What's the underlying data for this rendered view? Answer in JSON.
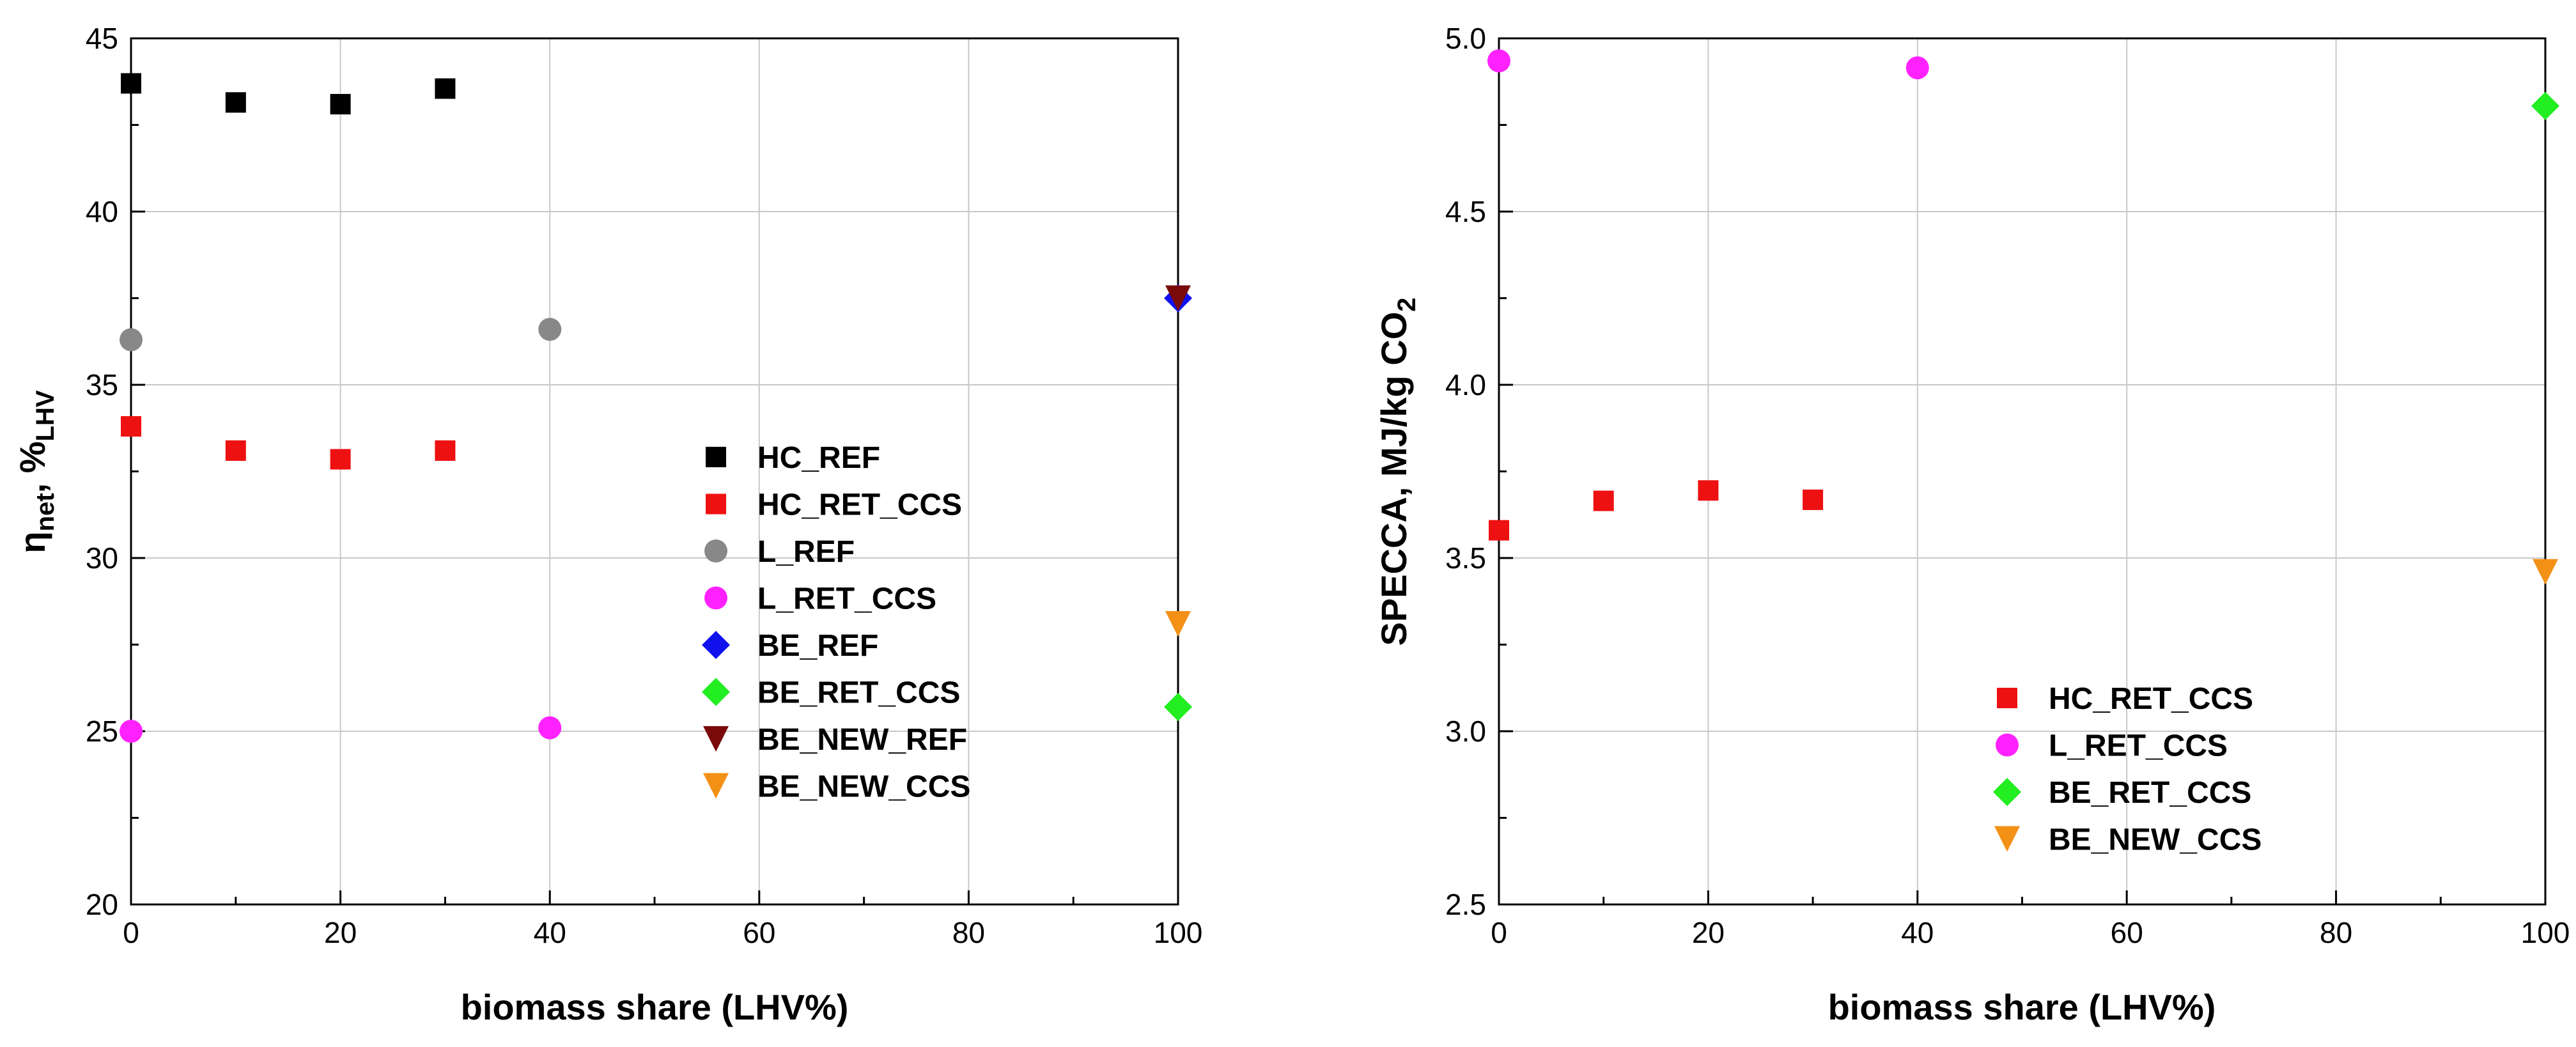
{
  "chart_data": [
    {
      "type": "scatter",
      "xlabel": "biomass share (LHV%)",
      "ylabel_main": "η",
      "ylabel_sub1": "net",
      "ylabel_mid": ", %",
      "ylabel_sub2": "LHV",
      "xlim": [
        0,
        100
      ],
      "ylim": [
        20,
        45
      ],
      "xticks": [
        0,
        20,
        40,
        60,
        80,
        100
      ],
      "yticks": [
        20,
        25,
        30,
        35,
        40,
        45
      ],
      "grid": true,
      "legend_position": "lower-right",
      "series": [
        {
          "name": "HC_REF",
          "marker": "square",
          "color": "#000000",
          "x": [
            0,
            10,
            20,
            30
          ],
          "y": [
            43.7,
            43.15,
            43.1,
            43.55
          ]
        },
        {
          "name": "HC_RET_CCS",
          "marker": "square",
          "color": "#ee1111",
          "x": [
            0,
            10,
            20,
            30
          ],
          "y": [
            33.8,
            33.1,
            32.85,
            33.1
          ]
        },
        {
          "name": "L_REF",
          "marker": "circle",
          "color": "#888888",
          "x": [
            0,
            40
          ],
          "y": [
            36.3,
            36.6
          ]
        },
        {
          "name": "L_RET_CCS",
          "marker": "circle",
          "color": "#ff22ff",
          "x": [
            0,
            40
          ],
          "y": [
            25.0,
            25.1
          ]
        },
        {
          "name": "BE_REF",
          "marker": "diamond",
          "color": "#1111ee",
          "x": [
            100
          ],
          "y": [
            37.5
          ]
        },
        {
          "name": "BE_RET_CCS",
          "marker": "diamond",
          "color": "#22ee22",
          "x": [
            100
          ],
          "y": [
            25.7
          ]
        },
        {
          "name": "BE_NEW_REF",
          "marker": "triangle-down",
          "color": "#7a0a0a",
          "x": [
            100
          ],
          "y": [
            37.5
          ]
        },
        {
          "name": "BE_NEW_CCS",
          "marker": "triangle-down",
          "color": "#f39016",
          "x": [
            100
          ],
          "y": [
            28.1
          ]
        }
      ]
    },
    {
      "type": "scatter",
      "xlabel": "biomass share (LHV%)",
      "ylabel_main": "SPECCA, MJ/kg CO",
      "ylabel_sub": "2",
      "xlim": [
        0,
        100
      ],
      "ylim": [
        2.5,
        5.0
      ],
      "xticks": [
        0,
        20,
        40,
        60,
        80,
        100
      ],
      "yticks": [
        2.5,
        3.0,
        3.5,
        4.0,
        4.5,
        5.0
      ],
      "ytick_labels": [
        "2.5",
        "3.0",
        "3.5",
        "4.0",
        "4.5",
        "5.0"
      ],
      "grid": true,
      "legend_position": "lower-right",
      "series": [
        {
          "name": "HC_RET_CCS",
          "marker": "square",
          "color": "#ee1111",
          "x": [
            0,
            10,
            20,
            30
          ],
          "y": [
            3.58,
            3.665,
            3.695,
            3.668
          ]
        },
        {
          "name": "L_RET_CCS",
          "marker": "circle",
          "color": "#ff22ff",
          "x": [
            0,
            40
          ],
          "y": [
            4.935,
            4.915
          ]
        },
        {
          "name": "BE_RET_CCS",
          "marker": "diamond",
          "color": "#22ee22",
          "x": [
            100
          ],
          "y": [
            4.805
          ]
        },
        {
          "name": "BE_NEW_CCS",
          "marker": "triangle-down",
          "color": "#f39016",
          "x": [
            100
          ],
          "y": [
            3.46
          ]
        }
      ]
    }
  ]
}
